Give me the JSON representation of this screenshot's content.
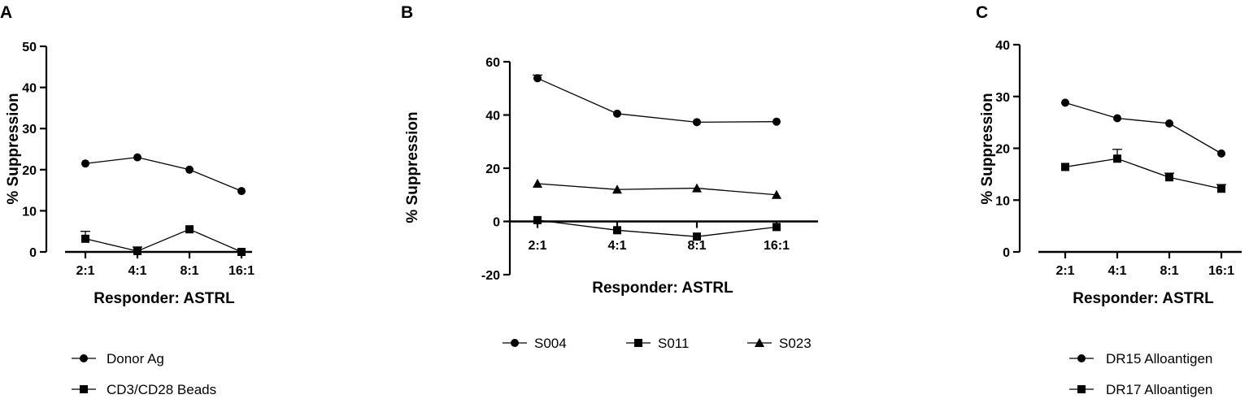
{
  "chart_data": [
    {
      "panel": "A",
      "type": "line",
      "categories": [
        "2:1",
        "4:1",
        "8:1",
        "16:1"
      ],
      "xlabel": "Responder: ASTRL",
      "ylabel": "% Suppression",
      "ylim": [
        0,
        50
      ],
      "yticks": [
        0,
        10,
        20,
        30,
        40,
        50
      ],
      "legend_position": "bottom",
      "series": [
        {
          "name": "Donor Ag",
          "marker": "circle",
          "values": [
            21.5,
            23,
            20,
            14.8
          ],
          "errors": [
            0,
            0,
            0,
            0
          ]
        },
        {
          "name": "CD3/CD28 Beads",
          "marker": "square",
          "values": [
            3.2,
            0.2,
            5.5,
            0
          ],
          "errors": [
            1.8,
            1.0,
            0,
            0
          ]
        }
      ]
    },
    {
      "panel": "B",
      "type": "line",
      "categories": [
        "2:1",
        "4:1",
        "8:1",
        "16:1"
      ],
      "xlabel": "Responder: ASTRL",
      "ylabel": "% Suppression",
      "ylim": [
        -20,
        60
      ],
      "yticks": [
        -20,
        0,
        20,
        40,
        60
      ],
      "legend_position": "bottom",
      "series": [
        {
          "name": "S004",
          "marker": "circle",
          "values": [
            53.8,
            40.5,
            37.3,
            37.5
          ],
          "errors": [
            1.2,
            0,
            0,
            0
          ]
        },
        {
          "name": "S011",
          "marker": "square",
          "values": [
            0.5,
            -3.3,
            -5.7,
            -2.1
          ],
          "errors": [
            0,
            0,
            0,
            0
          ]
        },
        {
          "name": "S023",
          "marker": "triangle",
          "values": [
            14.2,
            12,
            12.5,
            10
          ],
          "errors": [
            0,
            0,
            0,
            0
          ]
        }
      ]
    },
    {
      "panel": "C",
      "type": "line",
      "categories": [
        "2:1",
        "4:1",
        "8:1",
        "16:1"
      ],
      "xlabel": "Responder: ASTRL",
      "ylabel": "% Suppression",
      "ylim": [
        0,
        40
      ],
      "yticks": [
        0,
        10,
        20,
        30,
        40
      ],
      "legend_position": "bottom",
      "series": [
        {
          "name": "DR15 Alloantigen",
          "marker": "circle",
          "values": [
            28.8,
            25.8,
            24.8,
            19
          ],
          "errors": [
            0,
            0,
            0,
            0
          ]
        },
        {
          "name": "DR17 Alloantigen",
          "marker": "square",
          "values": [
            16.4,
            18,
            14.4,
            12.2
          ],
          "errors": [
            0,
            1.8,
            0.8,
            0.8
          ]
        }
      ]
    }
  ]
}
